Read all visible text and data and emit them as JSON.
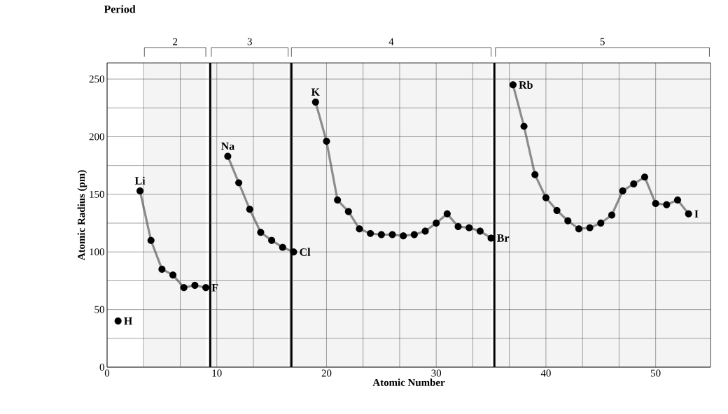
{
  "chart_data": {
    "type": "line",
    "title": "Period",
    "xlabel": "Atomic Number",
    "ylabel": "Atomic Radius (pm)",
    "xlim": [
      0,
      55
    ],
    "ylim": [
      0,
      264
    ],
    "xticks": [
      0,
      10,
      20,
      30,
      40,
      50
    ],
    "yticks": [
      0,
      50,
      100,
      150,
      200,
      250
    ],
    "grid": true,
    "marker": "circle",
    "line_style": "solid",
    "series": [
      {
        "type": "scatter",
        "color": "#000000",
        "x": [
          1
        ],
        "values": [
          40
        ]
      },
      {
        "color": "#8c8c8c",
        "x": [
          3,
          4,
          5,
          6,
          7,
          8,
          9
        ],
        "values": [
          153,
          110,
          85,
          80,
          69,
          71,
          69
        ]
      },
      {
        "color": "#8c8c8c",
        "x": [
          11,
          12,
          13,
          14,
          15,
          16,
          17
        ],
        "values": [
          183,
          160,
          137,
          117,
          110,
          104,
          100
        ]
      },
      {
        "color": "#8c8c8c",
        "x": [
          19,
          20,
          21,
          22,
          23,
          24,
          25,
          26,
          27,
          28,
          29,
          30,
          31,
          32,
          33,
          34,
          35
        ],
        "values": [
          230,
          196,
          145,
          135,
          120,
          116,
          115,
          115,
          114,
          115,
          118,
          125,
          133,
          122,
          121,
          118,
          112
        ]
      },
      {
        "color": "#8c8c8c",
        "x": [
          37,
          38,
          39,
          40,
          41,
          42,
          43,
          44,
          45,
          46,
          47,
          48,
          49,
          50,
          51,
          52,
          53
        ],
        "values": [
          245,
          209,
          167,
          147,
          136,
          127,
          120,
          121,
          125,
          132,
          153,
          159,
          165,
          142,
          141,
          145,
          133
        ]
      }
    ],
    "ref_lines": [
      {
        "axis": "x",
        "value": 9.4,
        "color": "#000000"
      },
      {
        "axis": "x",
        "value": 16.8,
        "color": "#000000"
      },
      {
        "axis": "x",
        "value": 35.3,
        "color": "#000000"
      }
    ],
    "bands": [
      {
        "axis": "x",
        "from": 3.4,
        "to": 9.0,
        "label": "2",
        "color": "#f4f4f4"
      },
      {
        "axis": "x",
        "from": 9.5,
        "to": 16.5,
        "label": "3",
        "color": "#f4f4f4"
      },
      {
        "axis": "x",
        "from": 16.8,
        "to": 35.0,
        "label": "4",
        "color": "#f4f4f4"
      },
      {
        "axis": "x",
        "from": 35.4,
        "to": 54.9,
        "label": "5",
        "color": "#f4f4f4"
      }
    ],
    "annotations": [
      {
        "text": "H",
        "x": 1,
        "y": 40
      },
      {
        "text": "Li",
        "x": 3,
        "y": 153
      },
      {
        "text": "F",
        "x": 9,
        "y": 69
      },
      {
        "text": "Na",
        "x": 11,
        "y": 183
      },
      {
        "text": "Cl",
        "x": 17,
        "y": 100
      },
      {
        "text": "K",
        "x": 19,
        "y": 230
      },
      {
        "text": "Br",
        "x": 35,
        "y": 112
      },
      {
        "text": "Rb",
        "x": 37,
        "y": 245
      },
      {
        "text": "I",
        "x": 53,
        "y": 133
      }
    ]
  }
}
